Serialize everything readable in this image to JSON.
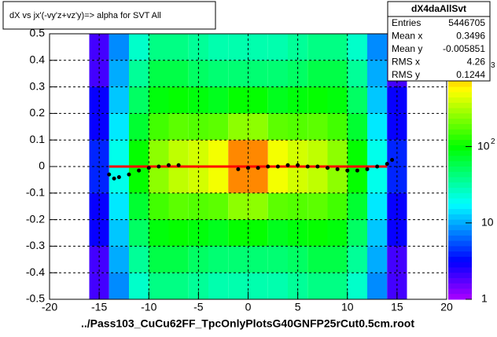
{
  "chart_data": {
    "type": "heatmap",
    "title": "dX vs    jx'(-vy'z+vz'y)=> alpha for SVT All",
    "x_label": "../Pass103_CuCu62FF_TpcOnlyPlotsG40GNFP25rCut0.5cm.root",
    "xlim": [
      -20,
      20
    ],
    "ylim": [
      -0.5,
      0.5
    ],
    "xticks": [
      -20,
      -15,
      -10,
      -5,
      0,
      5,
      10,
      15,
      20
    ],
    "yticks": [
      -0.5,
      -0.4,
      -0.3,
      -0.2,
      -0.1,
      0,
      0.1,
      0.2,
      0.3,
      0.4,
      0.5
    ],
    "grid": true,
    "log_z": true,
    "zlim": [
      1,
      3000
    ],
    "zticks": [
      1,
      10,
      {
        "value": 100,
        "base": "10",
        "exponent": "2"
      },
      {
        "value": 1000,
        "base": "10",
        "exponent": "3"
      }
    ],
    "x_bins": [
      -16,
      -14,
      -12,
      -10,
      -8,
      -6,
      -4,
      -2,
      0,
      2,
      4,
      6,
      8,
      10,
      12,
      14,
      16
    ],
    "y_bins": [
      -0.5,
      -0.4,
      -0.3,
      -0.2,
      -0.1,
      0,
      0.1,
      0.2,
      0.3,
      0.4,
      0.5
    ],
    "counts": [
      [
        2,
        8,
        25,
        40,
        40,
        35,
        30,
        30,
        30,
        30,
        35,
        40,
        40,
        25,
        8,
        2
      ],
      [
        2,
        10,
        35,
        60,
        60,
        50,
        45,
        45,
        45,
        45,
        50,
        60,
        60,
        35,
        10,
        2
      ],
      [
        3,
        12,
        50,
        90,
        100,
        90,
        80,
        100,
        100,
        80,
        90,
        100,
        90,
        50,
        12,
        3
      ],
      [
        3,
        15,
        70,
        150,
        180,
        170,
        180,
        250,
        250,
        180,
        170,
        180,
        150,
        70,
        15,
        3
      ],
      [
        4,
        20,
        100,
        250,
        350,
        400,
        500,
        1200,
        1200,
        500,
        400,
        350,
        250,
        100,
        20,
        4
      ],
      [
        4,
        20,
        100,
        250,
        350,
        400,
        500,
        1200,
        1200,
        500,
        400,
        350,
        250,
        100,
        20,
        4
      ],
      [
        3,
        15,
        70,
        150,
        180,
        170,
        180,
        250,
        250,
        180,
        170,
        180,
        150,
        70,
        15,
        3
      ],
      [
        3,
        12,
        50,
        90,
        100,
        90,
        80,
        100,
        100,
        80,
        90,
        100,
        90,
        50,
        12,
        3
      ],
      [
        2,
        10,
        35,
        60,
        60,
        50,
        45,
        45,
        45,
        45,
        50,
        60,
        60,
        35,
        10,
        2
      ],
      [
        2,
        8,
        25,
        40,
        40,
        35,
        30,
        30,
        30,
        30,
        35,
        40,
        40,
        25,
        8,
        2
      ]
    ],
    "profile": {
      "color": "#000000",
      "x": [
        -14,
        -13.5,
        -13,
        -12,
        -11,
        -10,
        -9,
        -8,
        -7,
        -1,
        0,
        1,
        2,
        3,
        4,
        5,
        6,
        7,
        8,
        9,
        10,
        11,
        12,
        13,
        14,
        14.5
      ],
      "y": [
        -0.03,
        -0.045,
        -0.04,
        -0.03,
        -0.015,
        -0.005,
        0,
        0.005,
        0.005,
        -0.01,
        -0.005,
        -0.005,
        0,
        0,
        0.005,
        0.005,
        0,
        0,
        -0.005,
        -0.01,
        -0.015,
        -0.015,
        -0.01,
        0,
        0.01,
        0.025
      ]
    },
    "fit": {
      "color": "#ff0000",
      "x": [
        -14,
        14
      ],
      "y": [
        0,
        0
      ]
    },
    "stats": {
      "title": "dX4daAllSvt",
      "rows": [
        [
          "Entries",
          5446705
        ],
        [
          "Mean x",
          0.3496
        ],
        [
          "Mean y",
          -0.005851
        ],
        [
          "RMS x",
          4.26
        ],
        [
          "RMS y",
          0.1244
        ]
      ]
    }
  }
}
